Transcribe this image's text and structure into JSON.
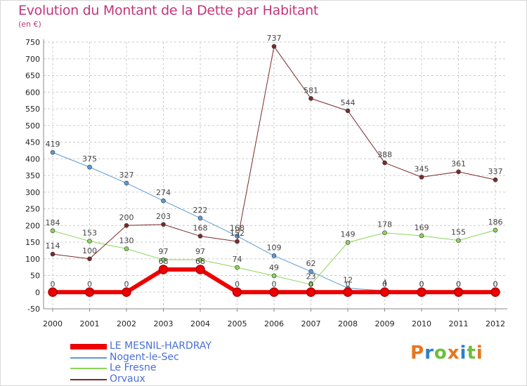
{
  "title": "Evolution du Montant de la Dette par Habitant",
  "unit_label": "(en €)",
  "logo": "Proxiti",
  "logo_letters": [
    {
      "ch": "P",
      "color": "#e8761c"
    },
    {
      "ch": "r",
      "color": "#2f7fc9"
    },
    {
      "ch": "o",
      "color": "#6bbf3b"
    },
    {
      "ch": "x",
      "color": "#e8761c"
    },
    {
      "ch": "i",
      "color": "#2f7fc9"
    },
    {
      "ch": "t",
      "color": "#6bbf3b"
    },
    {
      "ch": "i",
      "color": "#e8761c"
    }
  ],
  "colors": {
    "grid": "#cccccc",
    "axis": "#888888",
    "label_series": "#4a6fd6"
  },
  "chart_data": {
    "type": "line",
    "x": [
      "2000",
      "2001",
      "2002",
      "2003",
      "2004",
      "2005",
      "2006",
      "2007",
      "2008",
      "2009",
      "2010",
      "2011",
      "2012"
    ],
    "ylim": [
      -50,
      750
    ],
    "yticks": [
      -50,
      0,
      50,
      100,
      150,
      200,
      250,
      300,
      350,
      400,
      450,
      500,
      550,
      600,
      650,
      700,
      750
    ],
    "grid": true,
    "legend_position": "bottom-left",
    "series": [
      {
        "name": "LE MESNIL-HARDRAY",
        "color": "#ee0000",
        "width": 6,
        "values": [
          0,
          0,
          0,
          68,
          68,
          0,
          0,
          0,
          0,
          0,
          0,
          0,
          0
        ],
        "labels": [
          "0",
          "0",
          "0",
          "68",
          "68",
          "0",
          "0",
          "0",
          "0",
          "0",
          "0",
          "0",
          "0"
        ]
      },
      {
        "name": "Nogent-le-Sec",
        "color": "#5b9bd5",
        "width": 1,
        "values": [
          419,
          375,
          327,
          274,
          222,
          168,
          109,
          62,
          12,
          4,
          0,
          0,
          0
        ],
        "labels": [
          "419",
          "375",
          "327",
          "274",
          "222",
          "168",
          "109",
          "62",
          "12",
          "4",
          "0",
          "0",
          "0"
        ]
      },
      {
        "name": "Le Fresne",
        "color": "#8cd45a",
        "width": 1,
        "values": [
          184,
          153,
          130,
          97,
          97,
          74,
          49,
          23,
          149,
          178,
          169,
          155,
          186
        ],
        "labels": [
          "184",
          "153",
          "130",
          "97",
          "97",
          "74",
          "49",
          "23",
          "149",
          "178",
          "169",
          "155",
          "186"
        ]
      },
      {
        "name": "Orvaux",
        "color": "#7a2a2a",
        "width": 1,
        "values": [
          114,
          100,
          200,
          203,
          168,
          152,
          737,
          581,
          544,
          388,
          345,
          361,
          337
        ],
        "labels": [
          "114",
          "100",
          "200",
          "203",
          "168",
          "152",
          "737",
          "581",
          "544",
          "388",
          "345",
          "361",
          "337"
        ]
      }
    ]
  }
}
